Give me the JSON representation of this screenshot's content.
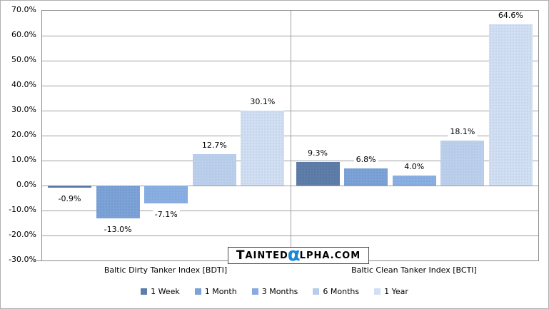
{
  "chart_data": {
    "type": "bar",
    "title": "",
    "categories": [
      "Baltic Dirty Tanker Index [BDTI]",
      "Baltic Clean Tanker Index [BCTI]"
    ],
    "series": [
      {
        "name": "1 Week",
        "color": "#5e7da9",
        "dot_color": "#52719d",
        "values": [
          -0.9,
          9.3
        ],
        "labels": [
          "-0.9%",
          "9.3%"
        ]
      },
      {
        "name": "1 Month",
        "color": "#7ca2d6",
        "dot_color": "#6b94cd",
        "values": [
          -13.0,
          6.8
        ],
        "labels": [
          "-13.0%",
          "6.8%"
        ]
      },
      {
        "name": "3 Months",
        "color": "#86abdf",
        "dot_color": "#97b8e6",
        "values": [
          -7.1,
          4.0
        ],
        "labels": [
          "-7.1%",
          "4.0%"
        ]
      },
      {
        "name": "6 Months",
        "color": "#b7cce9",
        "dot_color": "#c9d9f0",
        "values": [
          12.7,
          18.1
        ],
        "labels": [
          "12.7%",
          "18.1%"
        ]
      },
      {
        "name": "1 Year",
        "color": "#d2dff2",
        "dot_color": "#b4cae8",
        "values": [
          30.1,
          64.6
        ],
        "labels": [
          "30.1%",
          "64.6%"
        ]
      }
    ],
    "y_axis": {
      "min": -30,
      "max": 70,
      "step": 10,
      "tick_labels": [
        "70.0%",
        "60.0%",
        "50.0%",
        "40.0%",
        "30.0%",
        "20.0%",
        "10.0%",
        "0.0%",
        "-10.0%",
        "-20.0%",
        "-30.0%"
      ]
    },
    "grid": true,
    "legend_position": "bottom",
    "xlabel": "",
    "ylabel": ""
  },
  "watermark": {
    "initial": "T",
    "part1": "AINTED",
    "alpha": "α",
    "part2": "LPHA.COM",
    "alpha_color": "#1a86d6"
  },
  "colors": {
    "gridline": "#9e9e9e",
    "plot_border": "#8a8a8a",
    "axis_text": "#000000",
    "background": "#ffffff"
  }
}
